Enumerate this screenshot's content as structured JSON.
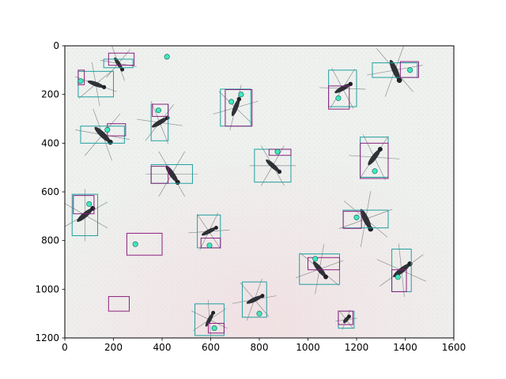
{
  "chart_data": {
    "type": "image-annotation",
    "title": "",
    "xlabel": "",
    "ylabel": "",
    "xlim": [
      0,
      1600
    ],
    "ylim": [
      1200,
      0
    ],
    "y_inverted": true,
    "x_ticks": [
      "0",
      "200",
      "400",
      "600",
      "800",
      "1000",
      "1200",
      "1400",
      "1600"
    ],
    "y_ticks": [
      "0",
      "200",
      "400",
      "600",
      "800",
      "1000",
      "1200"
    ],
    "background": "photograph of mosquito specimens on white paper",
    "colors": {
      "box_primary": "#20a0a0",
      "box_secondary": "#8a1f7e",
      "keypoint": "#40e8c0",
      "specimen": "#2e3136",
      "paper": "#eef1ee"
    },
    "boxes_primary": [
      {
        "x1": 55,
        "y1": 105,
        "x2": 200,
        "y2": 210
      },
      {
        "x1": 160,
        "y1": 55,
        "x2": 280,
        "y2": 90
      },
      {
        "x1": 65,
        "y1": 330,
        "x2": 245,
        "y2": 400
      },
      {
        "x1": 355,
        "y1": 240,
        "x2": 425,
        "y2": 390
      },
      {
        "x1": 640,
        "y1": 178,
        "x2": 765,
        "y2": 330
      },
      {
        "x1": 355,
        "y1": 488,
        "x2": 525,
        "y2": 565
      },
      {
        "x1": 780,
        "y1": 425,
        "x2": 930,
        "y2": 560
      },
      {
        "x1": 1085,
        "y1": 100,
        "x2": 1200,
        "y2": 250
      },
      {
        "x1": 1265,
        "y1": 70,
        "x2": 1450,
        "y2": 130
      },
      {
        "x1": 1215,
        "y1": 375,
        "x2": 1330,
        "y2": 540
      },
      {
        "x1": 30,
        "y1": 610,
        "x2": 135,
        "y2": 780
      },
      {
        "x1": 545,
        "y1": 695,
        "x2": 640,
        "y2": 830
      },
      {
        "x1": 1145,
        "y1": 675,
        "x2": 1330,
        "y2": 748
      },
      {
        "x1": 965,
        "y1": 855,
        "x2": 1130,
        "y2": 980
      },
      {
        "x1": 1345,
        "y1": 835,
        "x2": 1425,
        "y2": 1010
      },
      {
        "x1": 730,
        "y1": 970,
        "x2": 830,
        "y2": 1115
      },
      {
        "x1": 535,
        "y1": 1060,
        "x2": 655,
        "y2": 1190
      },
      {
        "x1": 1125,
        "y1": 1090,
        "x2": 1190,
        "y2": 1160
      }
    ],
    "boxes_secondary": [
      {
        "x1": 180,
        "y1": 30,
        "x2": 285,
        "y2": 80
      },
      {
        "x1": 55,
        "y1": 100,
        "x2": 80,
        "y2": 160
      },
      {
        "x1": 175,
        "y1": 320,
        "x2": 250,
        "y2": 370
      },
      {
        "x1": 360,
        "y1": 240,
        "x2": 425,
        "y2": 290
      },
      {
        "x1": 660,
        "y1": 180,
        "x2": 770,
        "y2": 330
      },
      {
        "x1": 355,
        "y1": 495,
        "x2": 425,
        "y2": 565
      },
      {
        "x1": 840,
        "y1": 425,
        "x2": 930,
        "y2": 450
      },
      {
        "x1": 1085,
        "y1": 165,
        "x2": 1170,
        "y2": 260
      },
      {
        "x1": 1380,
        "y1": 65,
        "x2": 1455,
        "y2": 130
      },
      {
        "x1": 1215,
        "y1": 400,
        "x2": 1330,
        "y2": 545
      },
      {
        "x1": 35,
        "y1": 615,
        "x2": 120,
        "y2": 690
      },
      {
        "x1": 560,
        "y1": 790,
        "x2": 640,
        "y2": 830
      },
      {
        "x1": 1145,
        "y1": 680,
        "x2": 1220,
        "y2": 750
      },
      {
        "x1": 1000,
        "y1": 870,
        "x2": 1130,
        "y2": 920
      },
      {
        "x1": 1345,
        "y1": 920,
        "x2": 1405,
        "y2": 1010
      },
      {
        "x1": 255,
        "y1": 770,
        "x2": 400,
        "y2": 860
      },
      {
        "x1": 180,
        "y1": 1030,
        "x2": 265,
        "y2": 1090
      },
      {
        "x1": 590,
        "y1": 1140,
        "x2": 655,
        "y2": 1180
      },
      {
        "x1": 1125,
        "y1": 1090,
        "x2": 1185,
        "y2": 1145
      }
    ],
    "keypoints": [
      {
        "x": 420,
        "y": 45
      },
      {
        "x": 65,
        "y": 145
      },
      {
        "x": 175,
        "y": 345
      },
      {
        "x": 385,
        "y": 265
      },
      {
        "x": 685,
        "y": 230
      },
      {
        "x": 725,
        "y": 200
      },
      {
        "x": 875,
        "y": 435
      },
      {
        "x": 1125,
        "y": 215
      },
      {
        "x": 1420,
        "y": 100
      },
      {
        "x": 1275,
        "y": 515
      },
      {
        "x": 100,
        "y": 650
      },
      {
        "x": 595,
        "y": 820
      },
      {
        "x": 1200,
        "y": 705
      },
      {
        "x": 1030,
        "y": 875
      },
      {
        "x": 1370,
        "y": 950
      },
      {
        "x": 290,
        "y": 815
      },
      {
        "x": 800,
        "y": 1100
      },
      {
        "x": 615,
        "y": 1160
      }
    ]
  }
}
